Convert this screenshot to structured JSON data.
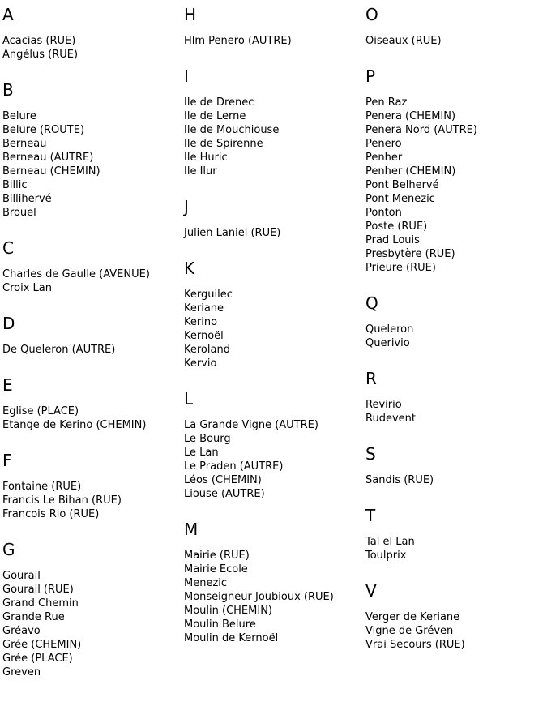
{
  "page": {
    "background": "#ffffff",
    "text_color": "#000000"
  },
  "columns": [
    {
      "sections": [
        {
          "letter": "A",
          "entries": [
            "Acacias (RUE)",
            "Angélus (RUE)"
          ]
        },
        {
          "letter": "B",
          "entries": [
            "Belure",
            "Belure (ROUTE)",
            "Berneau",
            "Berneau (AUTRE)",
            "Berneau (CHEMIN)",
            "Billic",
            "Billihervé",
            "Brouel"
          ]
        },
        {
          "letter": "C",
          "entries": [
            "Charles de Gaulle (AVENUE)",
            "Croix Lan"
          ]
        },
        {
          "letter": "D",
          "entries": [
            "De Queleron (AUTRE)"
          ]
        },
        {
          "letter": "E",
          "entries": [
            "Eglise (PLACE)",
            "Etange de Kerino (CHEMIN)"
          ]
        },
        {
          "letter": "F",
          "entries": [
            "Fontaine (RUE)",
            "Francis Le Bihan (RUE)",
            "Francois Rio (RUE)"
          ]
        },
        {
          "letter": "G",
          "entries": [
            "Gourail",
            "Gourail (RUE)",
            "Grand Chemin",
            "Grande Rue",
            "Gréavo",
            "Grée (CHEMIN)",
            "Grée (PLACE)",
            "Greven"
          ]
        }
      ]
    },
    {
      "sections": [
        {
          "letter": "H",
          "entries": [
            "Hlm Penero (AUTRE)"
          ]
        },
        {
          "letter": "I",
          "entries": [
            "Ile de Drenec",
            "Ile de Lerne",
            "Ile de Mouchiouse",
            "Ile de Spirenne",
            "Ile Huric",
            "Ile Ilur"
          ]
        },
        {
          "letter": "J",
          "entries": [
            "Julien Laniel (RUE)"
          ]
        },
        {
          "letter": "K",
          "entries": [
            "Kerguilec",
            "Keriane",
            "Kerino",
            "Kernoël",
            "Keroland",
            "Kervio"
          ]
        },
        {
          "letter": "L",
          "entries": [
            "La Grande Vigne (AUTRE)",
            "Le Bourg",
            "Le Lan",
            "Le Praden (AUTRE)",
            "Léos (CHEMIN)",
            "Liouse (AUTRE)"
          ]
        },
        {
          "letter": "M",
          "entries": [
            "Mairie (RUE)",
            "Mairie Ecole",
            "Menezic",
            "Monseigneur Joubioux (RUE)",
            "Moulin (CHEMIN)",
            "Moulin Belure",
            "Moulin de Kernoël"
          ]
        }
      ]
    },
    {
      "sections": [
        {
          "letter": "O",
          "entries": [
            "Oiseaux (RUE)"
          ]
        },
        {
          "letter": "P",
          "entries": [
            "Pen Raz",
            "Penera (CHEMIN)",
            "Penera Nord (AUTRE)",
            "Penero",
            "Penher",
            "Penher (CHEMIN)",
            "Pont Belhervé",
            "Pont Menezic",
            "Ponton",
            "Poste (RUE)",
            "Prad Louis",
            "Presbytère (RUE)",
            "Prieure (RUE)"
          ]
        },
        {
          "letter": "Q",
          "entries": [
            "Queleron",
            "Querivio"
          ]
        },
        {
          "letter": "R",
          "entries": [
            "Revirio",
            "Rudevent"
          ]
        },
        {
          "letter": "S",
          "entries": [
            "Sandis (RUE)"
          ]
        },
        {
          "letter": "T",
          "entries": [
            "Tal el Lan",
            "Toulprix"
          ]
        },
        {
          "letter": "V",
          "entries": [
            "Verger de Keriane",
            "Vigne de Gréven",
            "Vrai Secours (RUE)"
          ]
        }
      ]
    }
  ]
}
